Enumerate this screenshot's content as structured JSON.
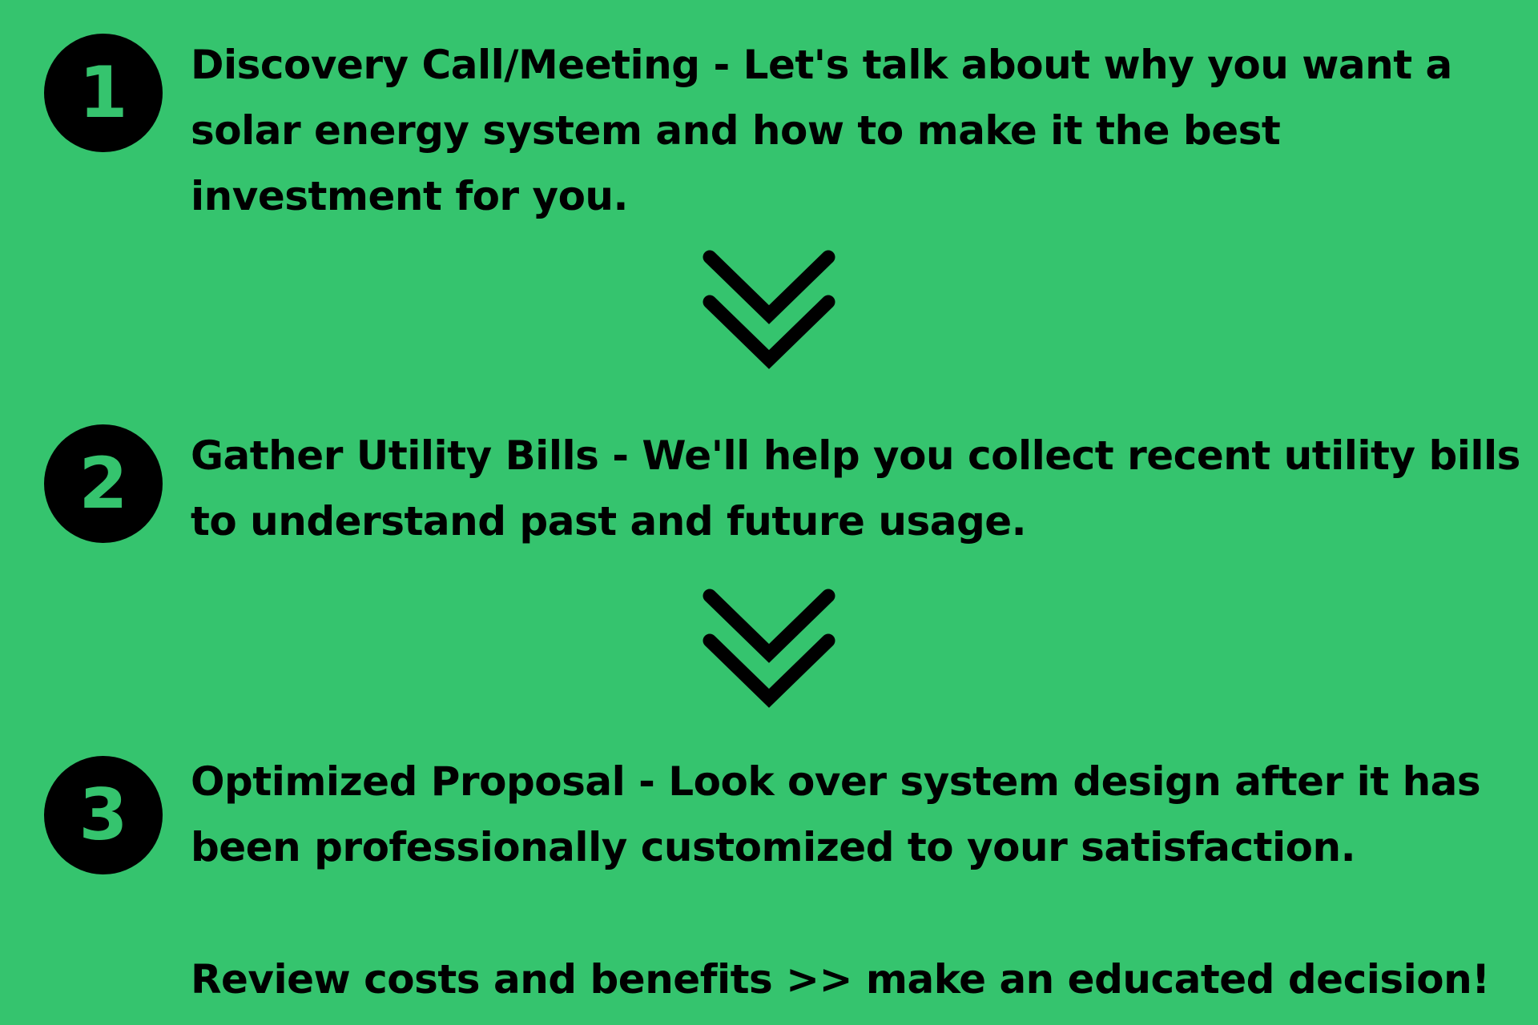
{
  "steps": [
    {
      "number": "1",
      "text": "Discovery Call/Meeting - Let's talk about why you want a solar energy system and how to make it the best investment for you."
    },
    {
      "number": "2",
      "text": "Gather Utility Bills - We'll help you collect recent utility bills to understand past and future usage."
    },
    {
      "number": "3",
      "text": "Optimized Proposal - Look over system design after it has been professionally customized to your satisfaction."
    }
  ],
  "closing": "Review costs and benefits >> make an educated decision!",
  "colors": {
    "background": "#35c46e",
    "foreground": "#000000"
  },
  "icons": {
    "connector": "double-chevron-down-icon"
  }
}
